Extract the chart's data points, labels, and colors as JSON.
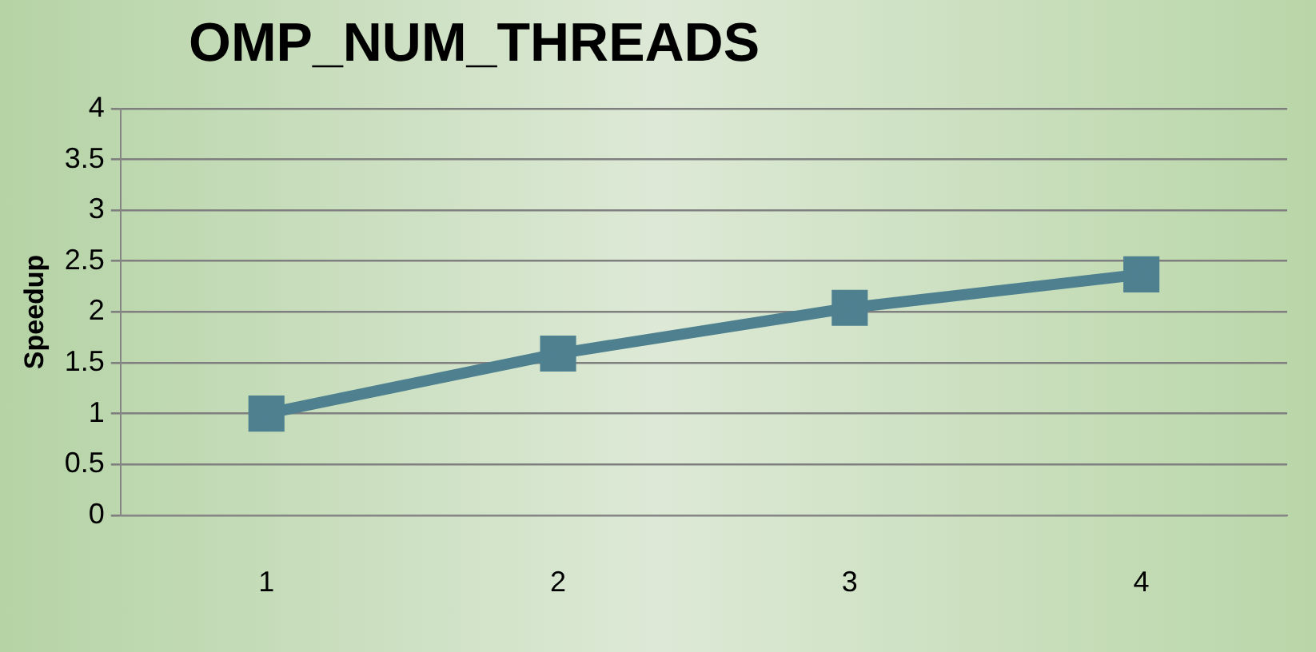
{
  "chart_data": {
    "type": "line",
    "title": "OMP_NUM_THREADS",
    "ylabel": "Speedup",
    "categories": [
      "1",
      "2",
      "3",
      "4"
    ],
    "series": [
      {
        "color": "#4e8090",
        "values": [
          1,
          1.59,
          2.04,
          2.37
        ]
      }
    ],
    "ylim": [
      0,
      4
    ],
    "yticks": [
      0,
      0.5,
      1,
      1.5,
      2,
      2.5,
      3,
      3.5,
      4
    ],
    "grid": "y",
    "legend": false,
    "marker": "square",
    "line_style": "solid"
  }
}
